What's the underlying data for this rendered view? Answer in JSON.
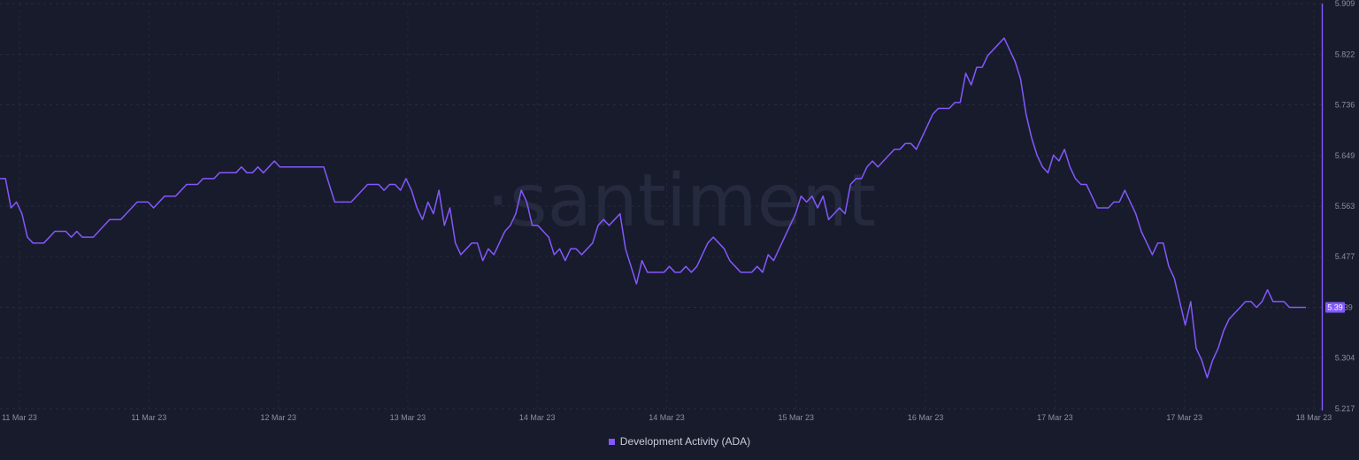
{
  "chart_data": {
    "type": "line",
    "watermark": "·santiment",
    "line_color": "#8358ff",
    "grid": true,
    "y_axis_side": "right",
    "ylim": [
      5.217,
      5.909
    ],
    "y_ticks": [
      "5.909",
      "5.822",
      "5.736",
      "5.649",
      "5.563",
      "5.477",
      "5.39",
      "5.304",
      "5.217"
    ],
    "x_tick_labels": [
      "11 Mar 23",
      "11 Mar 23",
      "12 Mar 23",
      "13 Mar 23",
      "14 Mar 23",
      "14 Mar 23",
      "15 Mar 23",
      "16 Mar 23",
      "17 Mar 23",
      "17 Mar 23",
      "18 Mar 23"
    ],
    "last_value_label": "5.39",
    "series": [
      {
        "name": "Development Activity (ADA)",
        "values": [
          5.61,
          5.61,
          5.56,
          5.57,
          5.55,
          5.51,
          5.5,
          5.5,
          5.5,
          5.51,
          5.52,
          5.52,
          5.52,
          5.51,
          5.52,
          5.51,
          5.51,
          5.51,
          5.52,
          5.53,
          5.54,
          5.54,
          5.54,
          5.55,
          5.56,
          5.57,
          5.57,
          5.57,
          5.56,
          5.57,
          5.58,
          5.58,
          5.58,
          5.59,
          5.6,
          5.6,
          5.6,
          5.61,
          5.61,
          5.61,
          5.62,
          5.62,
          5.62,
          5.62,
          5.63,
          5.62,
          5.62,
          5.63,
          5.62,
          5.63,
          5.64,
          5.63,
          5.63,
          5.63,
          5.63,
          5.63,
          5.63,
          5.63,
          5.63,
          5.63,
          5.6,
          5.57,
          5.57,
          5.57,
          5.57,
          5.58,
          5.59,
          5.6,
          5.6,
          5.6,
          5.59,
          5.6,
          5.6,
          5.59,
          5.61,
          5.59,
          5.56,
          5.54,
          5.57,
          5.55,
          5.59,
          5.53,
          5.56,
          5.5,
          5.48,
          5.49,
          5.5,
          5.5,
          5.47,
          5.49,
          5.48,
          5.5,
          5.52,
          5.53,
          5.55,
          5.59,
          5.57,
          5.53,
          5.53,
          5.52,
          5.51,
          5.48,
          5.49,
          5.47,
          5.49,
          5.49,
          5.48,
          5.49,
          5.5,
          5.53,
          5.54,
          5.53,
          5.54,
          5.55,
          5.49,
          5.46,
          5.43,
          5.47,
          5.45,
          5.45,
          5.45,
          5.45,
          5.46,
          5.45,
          5.45,
          5.46,
          5.45,
          5.46,
          5.48,
          5.5,
          5.51,
          5.5,
          5.49,
          5.47,
          5.46,
          5.45,
          5.45,
          5.45,
          5.46,
          5.45,
          5.48,
          5.47,
          5.49,
          5.51,
          5.53,
          5.55,
          5.58,
          5.57,
          5.58,
          5.56,
          5.58,
          5.54,
          5.55,
          5.56,
          5.55,
          5.6,
          5.61,
          5.61,
          5.63,
          5.64,
          5.63,
          5.64,
          5.65,
          5.66,
          5.66,
          5.67,
          5.67,
          5.66,
          5.68,
          5.7,
          5.72,
          5.73,
          5.73,
          5.73,
          5.74,
          5.74,
          5.79,
          5.77,
          5.8,
          5.8,
          5.82,
          5.83,
          5.84,
          5.85,
          5.83,
          5.81,
          5.78,
          5.72,
          5.68,
          5.65,
          5.63,
          5.62,
          5.65,
          5.64,
          5.66,
          5.63,
          5.61,
          5.6,
          5.6,
          5.58,
          5.56,
          5.56,
          5.56,
          5.57,
          5.57,
          5.59,
          5.57,
          5.55,
          5.52,
          5.5,
          5.48,
          5.5,
          5.5,
          5.46,
          5.44,
          5.4,
          5.36,
          5.4,
          5.32,
          5.3,
          5.27,
          5.3,
          5.32,
          5.35,
          5.37,
          5.38,
          5.39,
          5.4,
          5.4,
          5.39,
          5.4,
          5.42,
          5.4,
          5.4,
          5.4,
          5.39,
          5.39,
          5.39,
          5.39
        ]
      }
    ]
  }
}
